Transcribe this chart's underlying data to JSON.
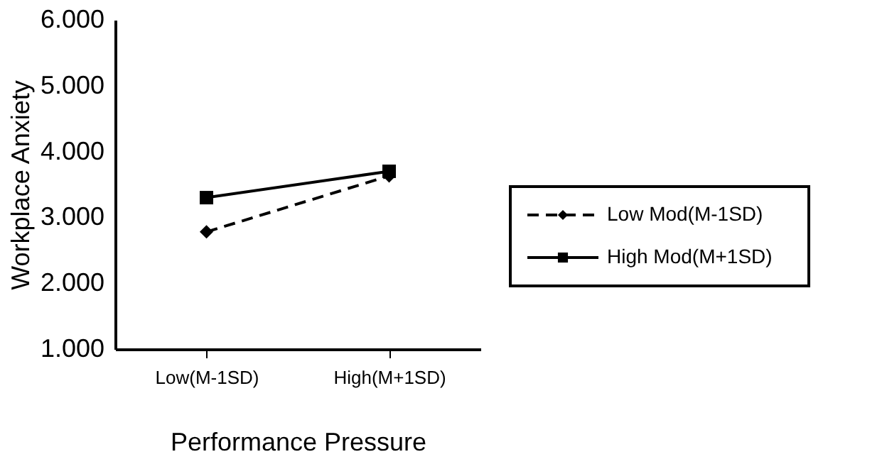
{
  "chart_data": {
    "type": "line",
    "xlabel": "Performance Pressure",
    "ylabel": "Workplace Anxiety",
    "categories": [
      "Low(M-1SD)",
      "High(M+1SD)"
    ],
    "series": [
      {
        "name": "Low Mod(M-1SD)",
        "color": "#000000",
        "values": [
          2.78,
          3.63
        ],
        "marker": "diamond",
        "line_style": "dashed"
      },
      {
        "name": "High Mod(M+1SD)",
        "color": "#000000",
        "values": [
          3.3,
          3.7
        ],
        "marker": "square",
        "line_style": "solid"
      }
    ],
    "ylim": [
      1,
      6
    ],
    "yticks": [
      {
        "value": 1,
        "label": "1.000"
      },
      {
        "value": 2,
        "label": "2.000"
      },
      {
        "value": 3,
        "label": "3.000"
      },
      {
        "value": 4,
        "label": "4.000"
      },
      {
        "value": 5,
        "label": "5.000"
      },
      {
        "value": 6,
        "label": "6.000"
      }
    ],
    "grid": false,
    "legend": "right"
  }
}
